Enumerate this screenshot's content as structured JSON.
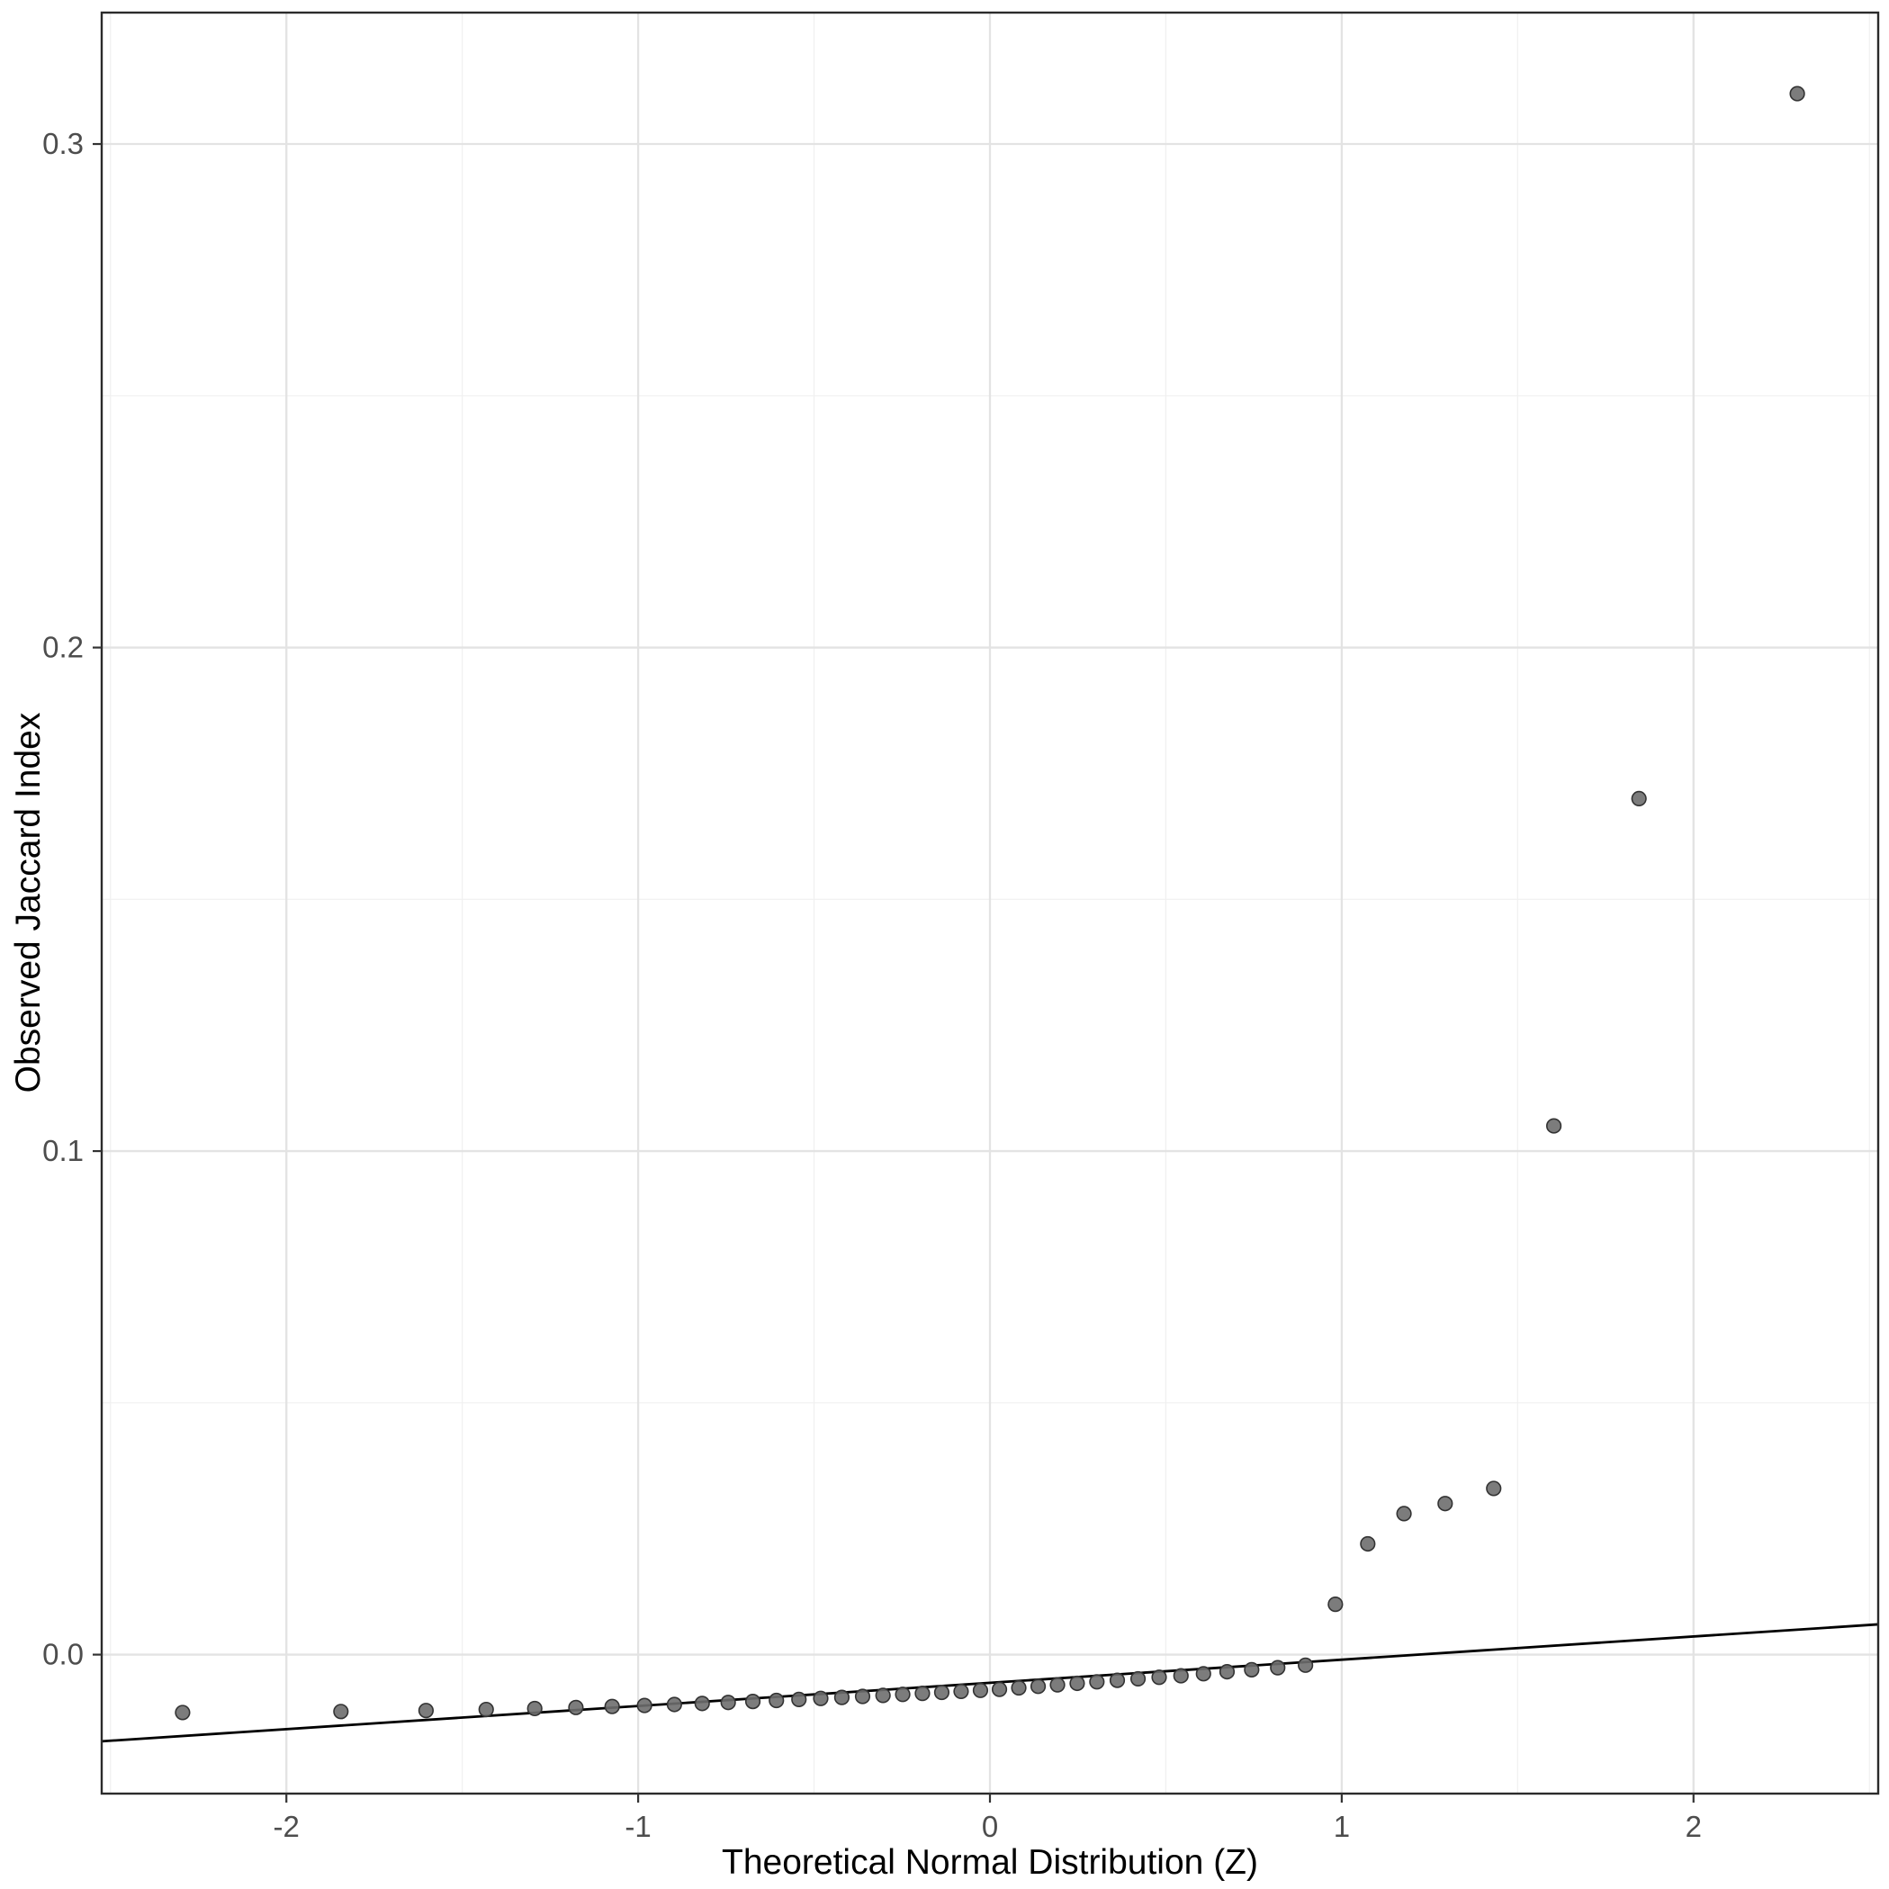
{
  "chart_data": {
    "type": "scatter",
    "title": "",
    "xlabel": "Theoretical Normal Distribution (Z)",
    "ylabel": "Observed Jaccard Index",
    "xlim": [
      -2.525,
      2.525
    ],
    "ylim": [
      -0.0276,
      0.3261
    ],
    "x_tick_values": [
      -2,
      -1,
      0,
      1,
      2
    ],
    "x_tick_labels": [
      "-2",
      "-1",
      "0",
      "1",
      "2"
    ],
    "y_tick_values": [
      0.0,
      0.1,
      0.2,
      0.3
    ],
    "y_tick_labels": [
      "0.0",
      "0.1",
      "0.2",
      "0.3"
    ],
    "x_minor": [
      -2.5,
      -1.5,
      -0.5,
      0.5,
      1.5,
      2.5
    ],
    "y_minor": [
      0.05,
      0.15,
      0.25
    ],
    "grid": true,
    "legend_position": "none",
    "points": [
      [
        -2.295,
        -0.0115
      ],
      [
        -1.845,
        -0.0113
      ],
      [
        -1.603,
        -0.0111
      ],
      [
        -1.432,
        -0.0109
      ],
      [
        -1.294,
        -0.0107
      ],
      [
        -1.177,
        -0.0105
      ],
      [
        -1.074,
        -0.0103
      ],
      [
        -0.982,
        -0.0101
      ],
      [
        -0.897,
        -0.0099
      ],
      [
        -0.818,
        -0.0097
      ],
      [
        -0.744,
        -0.0095
      ],
      [
        -0.674,
        -0.0093
      ],
      [
        -0.607,
        -0.0091
      ],
      [
        -0.543,
        -0.0089
      ],
      [
        -0.481,
        -0.0087
      ],
      [
        -0.421,
        -0.0085
      ],
      [
        -0.362,
        -0.0083
      ],
      [
        -0.304,
        -0.0081
      ],
      [
        -0.248,
        -0.0079
      ],
      [
        -0.192,
        -0.0077
      ],
      [
        -0.137,
        -0.0075
      ],
      [
        -0.082,
        -0.0073
      ],
      [
        -0.027,
        -0.0071
      ],
      [
        0.027,
        -0.0069
      ],
      [
        0.082,
        -0.0066
      ],
      [
        0.137,
        -0.0063
      ],
      [
        0.192,
        -0.006
      ],
      [
        0.248,
        -0.0057
      ],
      [
        0.304,
        -0.0054
      ],
      [
        0.362,
        -0.0051
      ],
      [
        0.421,
        -0.0048
      ],
      [
        0.481,
        -0.0045
      ],
      [
        0.543,
        -0.0042
      ],
      [
        0.607,
        -0.0038
      ],
      [
        0.674,
        -0.0034
      ],
      [
        0.744,
        -0.003
      ],
      [
        0.818,
        -0.0026
      ],
      [
        0.897,
        -0.0021
      ],
      [
        0.982,
        0.01
      ],
      [
        1.074,
        0.022
      ],
      [
        1.177,
        0.028
      ],
      [
        1.294,
        0.03
      ],
      [
        1.432,
        0.033
      ],
      [
        1.603,
        0.105
      ],
      [
        1.845,
        0.17
      ],
      [
        2.295,
        0.31
      ]
    ],
    "ref_line": {
      "slope": 0.0046,
      "intercept": -0.0056
    },
    "style": {
      "background": "#ffffff",
      "panel_background": "#ffffff",
      "panel_border": "#2b2b2b",
      "grid_major": "#e3e3e3",
      "grid_minor": "#f0f0f0",
      "point_fill": "#6e6e6e",
      "point_stroke": "#333333",
      "line_color": "#000000",
      "tick_color": "#333333",
      "tick_label_color": "#4d4d4d",
      "axis_title_color": "#000000"
    }
  }
}
